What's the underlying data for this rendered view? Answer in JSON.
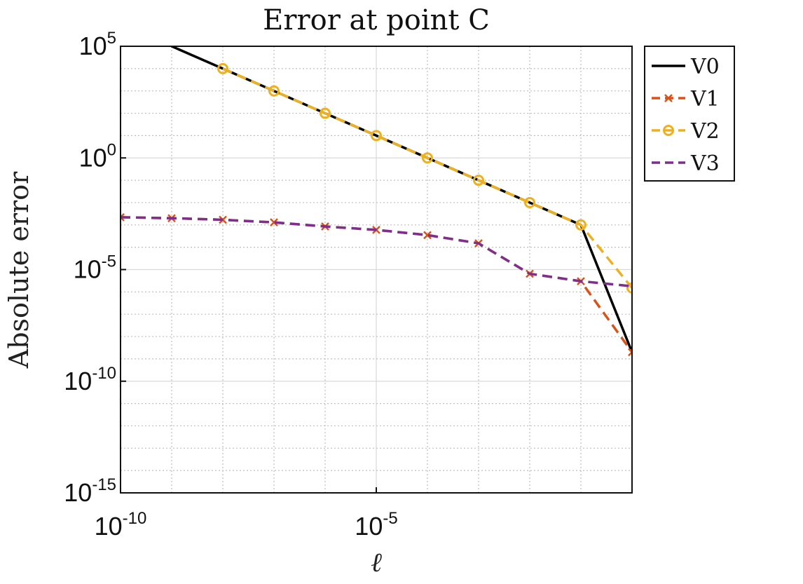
{
  "chart_data": {
    "type": "line",
    "title": "Error at point C",
    "xlabel": "ℓ",
    "ylabel": "Absolute error",
    "x_scale": "log",
    "y_scale": "log",
    "xlim": [
      1e-10,
      1
    ],
    "ylim": [
      1e-15,
      100000.0
    ],
    "x_ticks": [
      {
        "base": "10",
        "exp": "-10",
        "value": 1e-10
      },
      {
        "base": "10",
        "exp": "-5",
        "value": 1e-05
      }
    ],
    "y_ticks": [
      {
        "base": "10",
        "exp": "5",
        "value": 100000.0
      },
      {
        "base": "10",
        "exp": "0",
        "value": 1
      },
      {
        "base": "10",
        "exp": "-5",
        "value": 1e-05
      },
      {
        "base": "10",
        "exp": "-10",
        "value": 1e-10
      },
      {
        "base": "10",
        "exp": "-15",
        "value": 1e-15
      }
    ],
    "grid": true,
    "legend_position": "outside-top-right",
    "series": [
      {
        "name": "V0",
        "color": "#000000",
        "dash": "solid",
        "marker": "none",
        "x": [
          5e-10,
          1e-09,
          1e-08,
          1e-07,
          1e-06,
          1e-05,
          0.0001,
          0.001,
          0.01,
          0.1,
          1
        ],
        "y": [
          1000000.0,
          100000.0,
          10000,
          1000,
          100,
          10,
          1,
          0.1,
          0.01,
          0.001,
          2e-09
        ]
      },
      {
        "name": "V1",
        "color": "#d95319",
        "dash": "dashed",
        "marker": "x",
        "x": [
          1e-10,
          1e-09,
          1e-08,
          1e-07,
          1e-06,
          1e-05,
          0.0001,
          0.001,
          0.01,
          0.1,
          1
        ],
        "y": [
          0.0022,
          0.002,
          0.0017,
          0.0013,
          0.00085,
          0.0006,
          0.00035,
          0.00015,
          6.5e-06,
          3e-06,
          2e-09
        ]
      },
      {
        "name": "V2",
        "color": "#edb120",
        "dash": "dashed",
        "marker": "o",
        "x": [
          1e-08,
          1e-07,
          1e-06,
          1e-05,
          0.0001,
          0.001,
          0.01,
          0.1,
          1
        ],
        "y": [
          10000,
          1000,
          100,
          10,
          1,
          0.1,
          0.01,
          0.001,
          1.5e-06
        ]
      },
      {
        "name": "V3",
        "color": "#7e2f8e",
        "dash": "dashed",
        "marker": "none",
        "x": [
          1e-10,
          1e-09,
          1e-08,
          1e-07,
          1e-06,
          1e-05,
          0.0001,
          0.001,
          0.01,
          0.1,
          1
        ],
        "y": [
          0.0022,
          0.002,
          0.0017,
          0.0013,
          0.00085,
          0.0006,
          0.00035,
          0.00015,
          6.5e-06,
          3e-06,
          1.8e-06
        ]
      }
    ]
  }
}
